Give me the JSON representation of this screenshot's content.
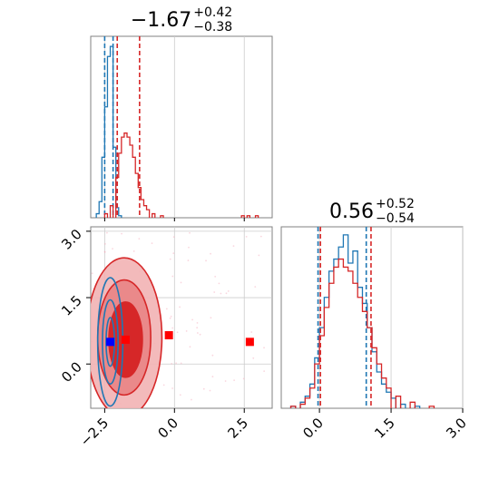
{
  "chart_data": [
    {
      "type": "histogram",
      "panel": "marginal-top-left",
      "title": {
        "value": "−1.67",
        "sup": "+0.42",
        "sub": "−0.38"
      },
      "xlim": [
        -3.0,
        3.5
      ],
      "grid": true,
      "series": [
        {
          "color": "#1f77b4",
          "bins": [
            [
              -2.8,
              0.02
            ],
            [
              -2.7,
              0.08
            ],
            [
              -2.6,
              0.3
            ],
            [
              -2.5,
              0.55
            ],
            [
              -2.4,
              0.8
            ],
            [
              -2.3,
              0.85
            ],
            [
              -2.2,
              0.35
            ],
            [
              -2.1,
              0.05
            ],
            [
              -2.0,
              0.01
            ]
          ],
          "quantiles": [
            -2.5,
            -2.2
          ]
        },
        {
          "color": "#d62728",
          "bins": [
            [
              -2.5,
              0.02
            ],
            [
              -2.3,
              0.06
            ],
            [
              -2.1,
              0.2
            ],
            [
              -2.0,
              0.32
            ],
            [
              -1.9,
              0.4
            ],
            [
              -1.8,
              0.42
            ],
            [
              -1.7,
              0.4
            ],
            [
              -1.6,
              0.36
            ],
            [
              -1.5,
              0.3
            ],
            [
              -1.4,
              0.22
            ],
            [
              -1.3,
              0.15
            ],
            [
              -1.2,
              0.09
            ],
            [
              -1.1,
              0.06
            ],
            [
              -1.0,
              0.04
            ],
            [
              -0.8,
              0.02
            ],
            [
              -0.5,
              0.01
            ],
            [
              2.4,
              0.01
            ],
            [
              2.6,
              0.01
            ],
            [
              2.9,
              0.01
            ]
          ],
          "quantiles": [
            -2.05,
            -1.25
          ]
        }
      ]
    },
    {
      "type": "histogram",
      "panel": "marginal-bottom-right",
      "title": {
        "value": "0.56",
        "sup": "+0.52",
        "sub": "−0.54"
      },
      "xlim": [
        -0.8,
        3.0
      ],
      "xticks": [
        "0.0",
        "1.5",
        "3.0"
      ],
      "grid": true,
      "series": [
        {
          "color": "#1f77b4",
          "bins": [
            [
              -0.6,
              0.01
            ],
            [
              -0.4,
              0.03
            ],
            [
              -0.3,
              0.06
            ],
            [
              -0.2,
              0.12
            ],
            [
              -0.1,
              0.25
            ],
            [
              0.0,
              0.4
            ],
            [
              0.1,
              0.55
            ],
            [
              0.2,
              0.68
            ],
            [
              0.3,
              0.74
            ],
            [
              0.4,
              0.8
            ],
            [
              0.5,
              0.86
            ],
            [
              0.6,
              0.72
            ],
            [
              0.7,
              0.78
            ],
            [
              0.8,
              0.6
            ],
            [
              0.9,
              0.52
            ],
            [
              1.0,
              0.4
            ],
            [
              1.1,
              0.28
            ],
            [
              1.2,
              0.18
            ],
            [
              1.3,
              0.12
            ],
            [
              1.4,
              0.08
            ],
            [
              1.5,
              0.05
            ],
            [
              1.7,
              0.02
            ],
            [
              2.0,
              0.01
            ]
          ],
          "quantiles": [
            -0.03,
            0.98
          ]
        },
        {
          "color": "#d62728",
          "bins": [
            [
              -0.6,
              0.01
            ],
            [
              -0.4,
              0.02
            ],
            [
              -0.3,
              0.05
            ],
            [
              -0.2,
              0.1
            ],
            [
              -0.1,
              0.22
            ],
            [
              0.0,
              0.36
            ],
            [
              0.1,
              0.5
            ],
            [
              0.2,
              0.62
            ],
            [
              0.3,
              0.7
            ],
            [
              0.4,
              0.74
            ],
            [
              0.5,
              0.7
            ],
            [
              0.6,
              0.68
            ],
            [
              0.7,
              0.62
            ],
            [
              0.8,
              0.55
            ],
            [
              0.9,
              0.48
            ],
            [
              1.0,
              0.4
            ],
            [
              1.1,
              0.3
            ],
            [
              1.2,
              0.22
            ],
            [
              1.3,
              0.15
            ],
            [
              1.4,
              0.1
            ],
            [
              1.6,
              0.06
            ],
            [
              1.9,
              0.03
            ],
            [
              2.3,
              0.01
            ]
          ],
          "quantiles": [
            0.02,
            1.08
          ]
        }
      ]
    },
    {
      "type": "contour",
      "panel": "joint-bottom-left",
      "xlim": [
        -3.0,
        3.5
      ],
      "ylim": [
        -1.0,
        3.1
      ],
      "xticks": [
        "−2.5",
        "0.0",
        "2.5"
      ],
      "yticks": [
        "0.0",
        "1.5",
        "3.0"
      ],
      "grid": true,
      "markers": [
        {
          "x": -2.3,
          "y": 0.5,
          "color": "#0000ff"
        },
        {
          "x": -1.75,
          "y": 0.55,
          "color": "#ff0000"
        },
        {
          "x": -0.2,
          "y": 0.65,
          "color": "#ff0000"
        },
        {
          "x": 2.7,
          "y": 0.5,
          "color": "#ff0000"
        }
      ],
      "contours": [
        {
          "color": "#d62728",
          "cx": -1.8,
          "cy": 0.6,
          "rx": 1.35,
          "ry": 1.8,
          "fill": "#f2b3b4",
          "alpha": 0.9
        },
        {
          "color": "#d62728",
          "cx": -1.8,
          "cy": 0.6,
          "rx": 0.95,
          "ry": 1.3,
          "fill": "#e98485",
          "alpha": 0.9
        },
        {
          "color": "#d62728",
          "cx": -1.75,
          "cy": 0.55,
          "rx": 0.6,
          "ry": 0.85,
          "fill": "#d62728",
          "alpha": 1.0
        },
        {
          "color": "#1f77b4",
          "cx": -2.3,
          "cy": 0.5,
          "rx": 0.45,
          "ry": 1.45,
          "fill": "none",
          "alpha": 1.0
        },
        {
          "color": "#1f77b4",
          "cx": -2.3,
          "cy": 0.5,
          "rx": 0.28,
          "ry": 0.95,
          "fill": "none",
          "alpha": 1.0
        },
        {
          "color": "#1f77b4",
          "cx": -2.3,
          "cy": 0.5,
          "rx": 0.15,
          "ry": 0.55,
          "fill": "none",
          "alpha": 1.0
        }
      ]
    }
  ]
}
